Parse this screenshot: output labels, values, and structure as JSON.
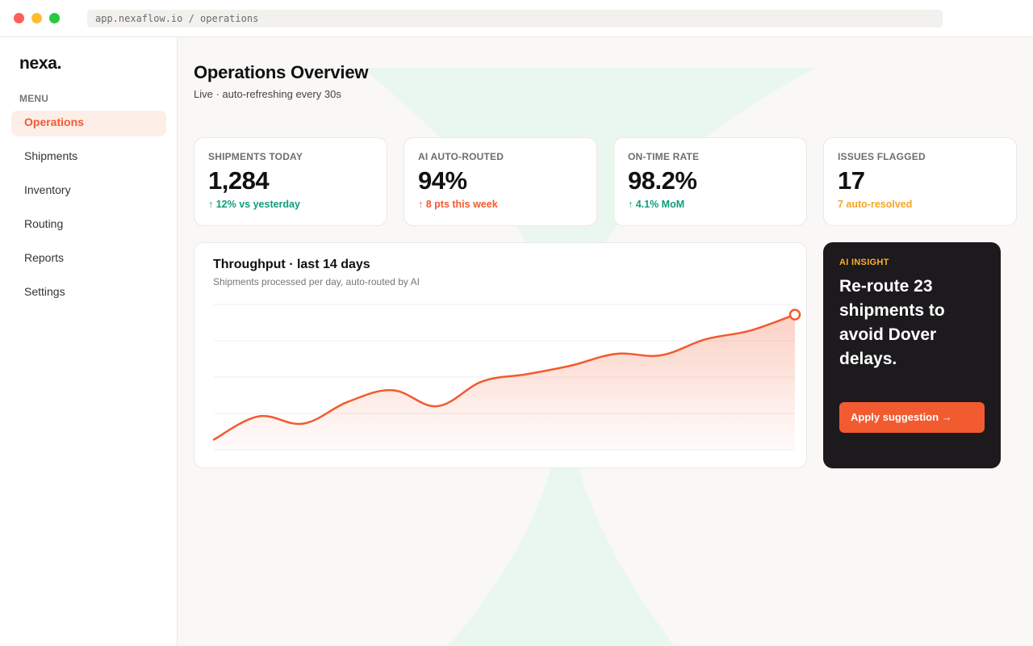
{
  "browser": {
    "url": "app.nexaflow.io / operations"
  },
  "sidebar": {
    "logo": "nexa.",
    "menu_label": "MENU",
    "items": [
      {
        "label": "Operations",
        "active": true
      },
      {
        "label": "Shipments",
        "active": false
      },
      {
        "label": "Inventory",
        "active": false
      },
      {
        "label": "Routing",
        "active": false
      },
      {
        "label": "Reports",
        "active": false
      },
      {
        "label": "Settings",
        "active": false
      }
    ]
  },
  "header": {
    "title": "Operations Overview",
    "subtitle": "Live · auto-refreshing every 30s"
  },
  "stats": [
    {
      "label": "SHIPMENTS TODAY",
      "value": "1,284",
      "trend": "↑ 12% vs yesterday",
      "trend_color": "#0f9f78"
    },
    {
      "label": "AI AUTO-ROUTED",
      "value": "94%",
      "trend": "↑ 8 pts this week",
      "trend_color": "#f25a2f"
    },
    {
      "label": "ON-TIME RATE",
      "value": "98.2%",
      "trend": "↑ 4.1% MoM",
      "trend_color": "#0f9f78"
    },
    {
      "label": "ISSUES FLAGGED",
      "value": "17",
      "trend": "7 auto-resolved",
      "trend_color": "#f5a524"
    }
  ],
  "chart": {
    "title": "Throughput · last 14 days",
    "subtitle": "Shipments processed per day, auto-routed by AI"
  },
  "chart_data": {
    "type": "area",
    "title": "Throughput · last 14 days",
    "xlabel": "",
    "ylabel": "",
    "ylim": [
      0,
      100
    ],
    "grid": true,
    "series": [
      {
        "values": [
          7,
          23,
          18,
          33,
          41,
          30,
          47,
          52,
          58,
          66,
          65,
          76,
          82,
          93
        ]
      }
    ]
  },
  "insight": {
    "label": "AI INSIGHT",
    "text": "Re-route 23 shipments to avoid Dover delays.",
    "button": "Apply suggestion →"
  },
  "colors": {
    "accent": "#f25a2f",
    "positive": "#0f9f78",
    "warning": "#f5a524",
    "dark_card": "#1c1a1d"
  }
}
